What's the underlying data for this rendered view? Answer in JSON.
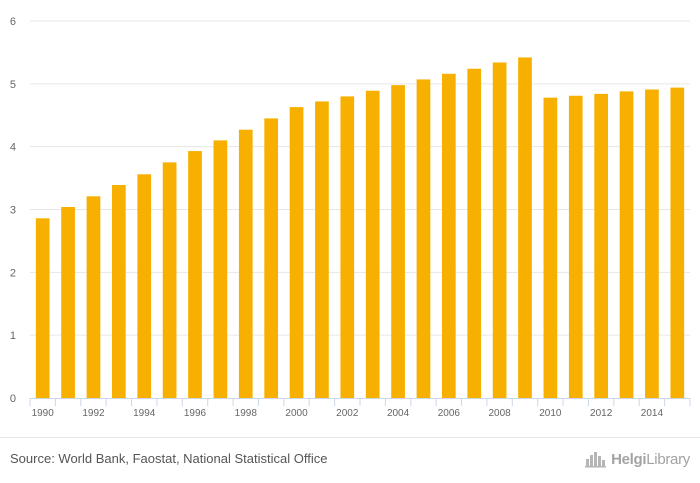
{
  "chart_data": {
    "type": "bar",
    "categories": [
      "1990",
      "1991",
      "1992",
      "1993",
      "1994",
      "1995",
      "1996",
      "1997",
      "1998",
      "1999",
      "2000",
      "2001",
      "2002",
      "2003",
      "2004",
      "2005",
      "2006",
      "2007",
      "2008",
      "2009",
      "2010",
      "2011",
      "2012",
      "2013",
      "2014",
      "2015"
    ],
    "x_tick_labels": [
      "1990",
      "1992",
      "1994",
      "1996",
      "1998",
      "2000",
      "2002",
      "2004",
      "2006",
      "2008",
      "2010",
      "2012",
      "2014"
    ],
    "values": [
      2.86,
      3.04,
      3.21,
      3.39,
      3.56,
      3.75,
      3.93,
      4.1,
      4.27,
      4.45,
      4.63,
      4.72,
      4.8,
      4.89,
      4.98,
      5.07,
      5.16,
      5.24,
      5.34,
      5.42,
      4.78,
      4.81,
      4.84,
      4.88,
      4.91,
      4.94
    ],
    "ylim": [
      0,
      6
    ],
    "y_ticks": [
      0,
      1,
      2,
      3,
      4,
      5,
      6
    ],
    "title": "",
    "xlabel": "",
    "ylabel": "",
    "grid": true,
    "colors": {
      "bar": "#f7b000",
      "grid": "#e6e6e6",
      "axis": "#ccd6eb",
      "tick_label": "#666666"
    }
  },
  "footer": {
    "source": "Source: World Bank, Faostat, National Statistical Office",
    "brand": {
      "part1": "Helgi",
      "part2": "Library",
      "icon": "helgi-library-logo-icon"
    }
  }
}
